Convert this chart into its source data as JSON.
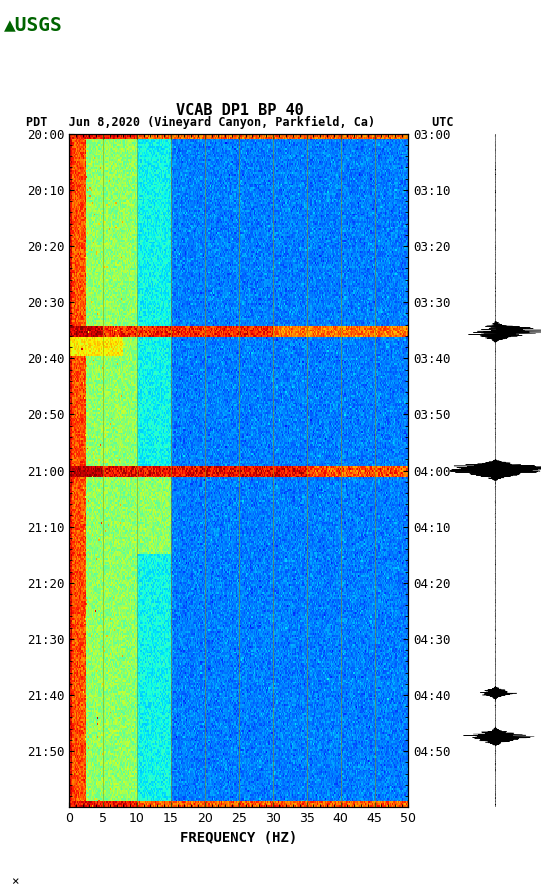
{
  "title_line1": "VCAB DP1 BP 40",
  "title_line2": "PDT   Jun 8,2020 (Vineyard Canyon, Parkfield, Ca)        UTC",
  "xlabel": "FREQUENCY (HZ)",
  "left_yticks": [
    "20:00",
    "20:10",
    "20:20",
    "20:30",
    "20:40",
    "20:50",
    "21:00",
    "21:10",
    "21:20",
    "21:30",
    "21:40",
    "21:50"
  ],
  "right_yticks": [
    "03:00",
    "03:10",
    "03:20",
    "03:30",
    "03:40",
    "03:50",
    "04:00",
    "04:10",
    "04:20",
    "04:30",
    "04:40",
    "04:50"
  ],
  "freq_ticks": [
    0,
    5,
    10,
    15,
    20,
    25,
    30,
    35,
    40,
    45,
    50
  ],
  "freq_gridlines": [
    5,
    10,
    15,
    20,
    25,
    30,
    35,
    40,
    45
  ],
  "n_time": 360,
  "n_freq": 300,
  "font_family": "monospace",
  "font_size_title": 11,
  "font_size_labels": 10,
  "font_size_ticks": 9,
  "vmin": -160,
  "vmax": -60,
  "gridline_color": "#999900",
  "gridline_alpha": 0.6,
  "gridline_lw": 0.6
}
